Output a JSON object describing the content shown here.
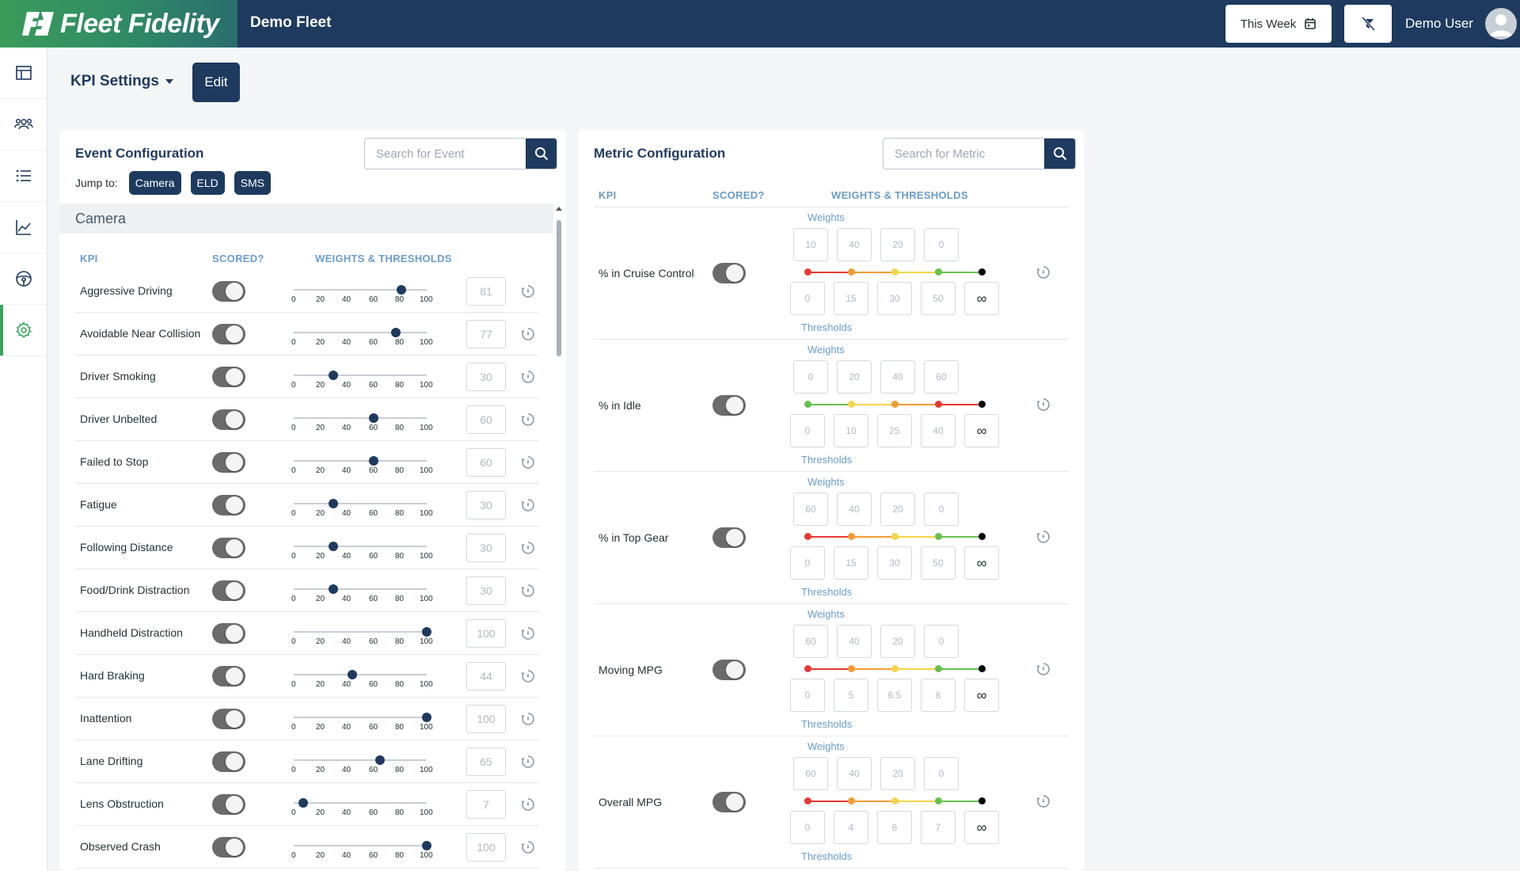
{
  "header": {
    "brand": "Fleet Fidelity",
    "fleet": "Demo Fleet",
    "date_range": "This Week",
    "user": "Demo User"
  },
  "sidebar": {
    "items": [
      "dashboard-icon",
      "drivers-icon",
      "list-icon",
      "chart-icon",
      "steering-wheel-icon",
      "gear-icon"
    ],
    "active": "gear-icon"
  },
  "page": {
    "title": "KPI Settings",
    "edit_label": "Edit"
  },
  "events": {
    "title": "Event Configuration",
    "search_placeholder": "Search for Event",
    "jump_label": "Jump to:",
    "jump_chips": [
      "Camera",
      "ELD",
      "SMS"
    ],
    "section": "Camera",
    "headers": {
      "kpi": "KPI",
      "scored": "SCORED?",
      "weights": "WEIGHTS & THRESHOLDS"
    },
    "ticks": [
      "0",
      "20",
      "40",
      "60",
      "80",
      "100"
    ],
    "rows": [
      {
        "name": "Aggressive Driving",
        "value": 81
      },
      {
        "name": "Avoidable Near Collision",
        "value": 77
      },
      {
        "name": "Driver Smoking",
        "value": 30
      },
      {
        "name": "Driver Unbelted",
        "value": 60
      },
      {
        "name": "Failed to Stop",
        "value": 60
      },
      {
        "name": "Fatigue",
        "value": 30
      },
      {
        "name": "Following Distance",
        "value": 30
      },
      {
        "name": "Food/Drink Distraction",
        "value": 30
      },
      {
        "name": "Handheld Distraction",
        "value": 100
      },
      {
        "name": "Hard Braking",
        "value": 44
      },
      {
        "name": "Inattention",
        "value": 100
      },
      {
        "name": "Lane Drifting",
        "value": 65
      },
      {
        "name": "Lens Obstruction",
        "value": 7
      },
      {
        "name": "Observed Crash",
        "value": 100
      }
    ]
  },
  "metrics": {
    "title": "Metric Configuration",
    "search_placeholder": "Search for Metric",
    "headers": {
      "kpi": "KPI",
      "scored": "SCORED?",
      "weights": "WEIGHTS & THRESHOLDS"
    },
    "weights_label": "Weights",
    "thresholds_label": "Thresholds",
    "infinity": "∞",
    "rows": [
      {
        "name": "% in Cruise Control",
        "weights": [
          "10",
          "40",
          "20",
          "0"
        ],
        "thresholds": [
          "0",
          "15",
          "30",
          "50"
        ],
        "colors": [
          "#e53935",
          "#f39c33",
          "#f3d64a",
          "#66c24e",
          "#000000"
        ]
      },
      {
        "name": "% in Idle",
        "weights": [
          "0",
          "20",
          "40",
          "60"
        ],
        "thresholds": [
          "0",
          "10",
          "25",
          "40"
        ],
        "colors": [
          "#66c24e",
          "#f3d64a",
          "#f39c33",
          "#e53935",
          "#000000"
        ]
      },
      {
        "name": "% in Top Gear",
        "weights": [
          "60",
          "40",
          "20",
          "0"
        ],
        "thresholds": [
          "0",
          "15",
          "30",
          "50"
        ],
        "colors": [
          "#e53935",
          "#f39c33",
          "#f3d64a",
          "#66c24e",
          "#000000"
        ]
      },
      {
        "name": "Moving MPG",
        "weights": [
          "60",
          "40",
          "20",
          "0"
        ],
        "thresholds": [
          "0",
          "5",
          "6.5",
          "8"
        ],
        "colors": [
          "#e53935",
          "#f39c33",
          "#f3d64a",
          "#66c24e",
          "#000000"
        ]
      },
      {
        "name": "Overall MPG",
        "weights": [
          "60",
          "40",
          "20",
          "0"
        ],
        "thresholds": [
          "0",
          "4",
          "6",
          "7"
        ],
        "colors": [
          "#e53935",
          "#f39c33",
          "#f3d64a",
          "#66c24e",
          "#000000"
        ]
      }
    ]
  }
}
